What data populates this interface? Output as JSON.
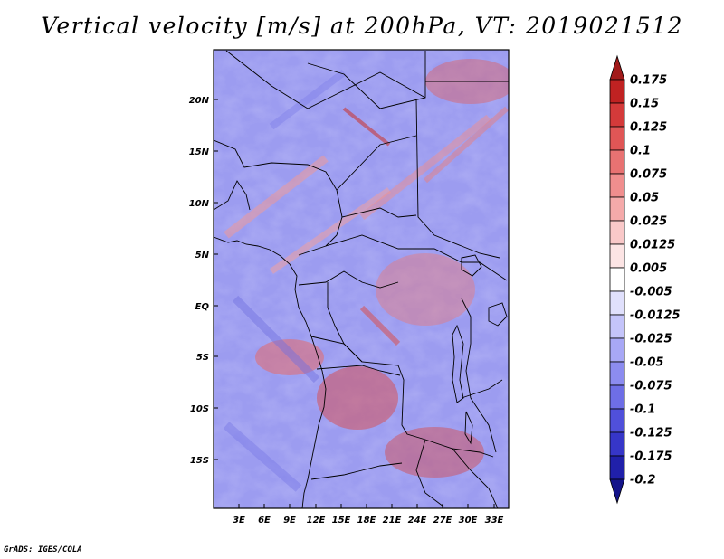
{
  "title": "Vertical velocity [m/s] at 200hPa, VT: 2019021512",
  "credit": "GrADS: IGES/COLA",
  "map": {
    "lat_labels": [
      "20N",
      "15N",
      "10N",
      "5N",
      "EQ",
      "5S",
      "10S",
      "15S"
    ],
    "lon_labels": [
      "3E",
      "6E",
      "9E",
      "12E",
      "15E",
      "18E",
      "21E",
      "24E",
      "27E",
      "30E",
      "33E"
    ]
  },
  "colorbar": {
    "levels": [
      "0.175",
      "0.15",
      "0.125",
      "0.1",
      "0.075",
      "0.05",
      "0.025",
      "0.0125",
      "0.005",
      "-0.005",
      "-0.0125",
      "-0.025",
      "-0.05",
      "-0.075",
      "-0.1",
      "-0.125",
      "-0.175",
      "-0.2"
    ],
    "colors": [
      "#a11a1a",
      "#c02222",
      "#d43a3a",
      "#e05656",
      "#e87272",
      "#f08e8e",
      "#f5aaaa",
      "#f9c8c8",
      "#fce4e4",
      "#ffffff",
      "#e0e0fc",
      "#c4c4fa",
      "#a8a8f6",
      "#8c8cf0",
      "#6e6ee6",
      "#5050da",
      "#3636c8",
      "#2020aa",
      "#14148a"
    ]
  }
}
